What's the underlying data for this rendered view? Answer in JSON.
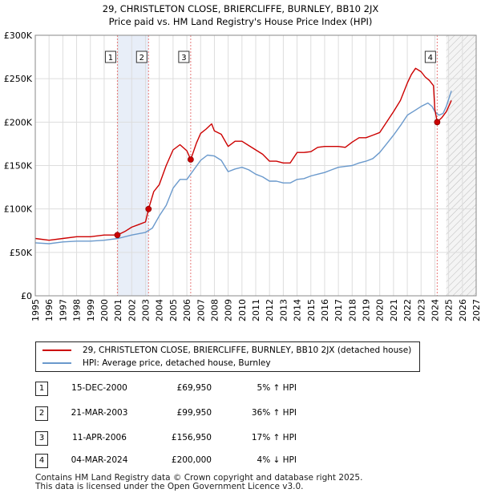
{
  "title": {
    "line1": "29, CHRISTLETON CLOSE, BRIERCLIFFE, BURNLEY, BB10 2JX",
    "line2": "Price paid vs. HM Land Registry's House Price Index (HPI)"
  },
  "legend": {
    "property": "29, CHRISTLETON CLOSE, BRIERCLIFFE, BURNLEY, BB10 2JX (detached house)",
    "hpi": "HPI: Average price, detached house, Burnley"
  },
  "sales": [
    {
      "num": "1",
      "date": "15-DEC-2000",
      "price": "£69,950",
      "hpi": "5% ↑ HPI"
    },
    {
      "num": "2",
      "date": "21-MAR-2003",
      "price": "£99,950",
      "hpi": "36% ↑ HPI"
    },
    {
      "num": "3",
      "date": "11-APR-2006",
      "price": "£156,950",
      "hpi": "17% ↑ HPI"
    },
    {
      "num": "4",
      "date": "04-MAR-2024",
      "price": "£200,000",
      "hpi": "4% ↓ HPI"
    }
  ],
  "footer": {
    "line1": "Contains HM Land Registry data © Crown copyright and database right 2025.",
    "line2": "This data is licensed under the Open Government Licence v3.0."
  },
  "colors": {
    "property": "#cc0000",
    "hpi": "#6a99cc",
    "marker_line": "#e87a7a",
    "shade": "#e8eef8",
    "grid": "#dddddd",
    "forecast_hatch": "#bbbbbb"
  },
  "chart_data": {
    "type": "line",
    "xlim": [
      1995,
      2027
    ],
    "ylim": [
      0,
      300000
    ],
    "x_ticks": [
      "1995",
      "1996",
      "1997",
      "1998",
      "1999",
      "2000",
      "2001",
      "2002",
      "2003",
      "2004",
      "2005",
      "2006",
      "2007",
      "2008",
      "2009",
      "2010",
      "2011",
      "2012",
      "2013",
      "2014",
      "2015",
      "2016",
      "2017",
      "2018",
      "2019",
      "2020",
      "2021",
      "2022",
      "2023",
      "2024",
      "2025",
      "2026",
      "2027"
    ],
    "y_ticks": [
      {
        "value": 0,
        "label": "£0"
      },
      {
        "value": 50000,
        "label": "£50K"
      },
      {
        "value": 100000,
        "label": "£100K"
      },
      {
        "value": 150000,
        "label": "£150K"
      },
      {
        "value": 200000,
        "label": "£200K"
      },
      {
        "value": 250000,
        "label": "£250K"
      },
      {
        "value": 300000,
        "label": "£300K"
      }
    ],
    "forecast_start": 2024.83,
    "sale_markers": [
      {
        "label": "1",
        "x": 2000.96,
        "y": 69950
      },
      {
        "label": "2",
        "x": 2003.22,
        "y": 99950
      },
      {
        "label": "3",
        "x": 2006.28,
        "y": 156950
      },
      {
        "label": "4",
        "x": 2024.17,
        "y": 200000
      }
    ],
    "series": [
      {
        "name": "29, CHRISTLETON CLOSE, BRIERCLIFFE, BURNLEY, BB10 2JX (detached house)",
        "x": [
          1995.0,
          1996.0,
          1997.0,
          1998.0,
          1999.0,
          2000.0,
          2000.96,
          2001.5,
          2002.0,
          2002.5,
          2003.0,
          2003.22,
          2003.6,
          2004.0,
          2004.5,
          2005.0,
          2005.5,
          2006.0,
          2006.28,
          2006.7,
          2007.0,
          2007.4,
          2007.8,
          2008.0,
          2008.5,
          2009.0,
          2009.5,
          2010.0,
          2010.5,
          2011.0,
          2011.5,
          2012.0,
          2012.5,
          2013.0,
          2013.5,
          2014.0,
          2014.5,
          2015.0,
          2015.5,
          2016.0,
          2016.5,
          2017.0,
          2017.5,
          2018.0,
          2018.5,
          2019.0,
          2019.5,
          2020.0,
          2020.5,
          2021.0,
          2021.5,
          2022.0,
          2022.3,
          2022.6,
          2023.0,
          2023.3,
          2023.6,
          2023.9,
          2024.0,
          2024.17,
          2024.5,
          2024.83,
          2025.2
        ],
        "y": [
          66000,
          64000,
          66000,
          68000,
          68000,
          70000,
          69950,
          74000,
          79000,
          82000,
          85000,
          99950,
          120000,
          128000,
          150000,
          168000,
          174000,
          167000,
          156950,
          176000,
          187000,
          192000,
          198000,
          190000,
          186000,
          172000,
          178000,
          178000,
          173000,
          168000,
          163000,
          155000,
          155000,
          153000,
          153000,
          165000,
          165000,
          166000,
          171000,
          172000,
          172000,
          172000,
          171000,
          177000,
          182000,
          182000,
          185000,
          188000,
          200000,
          212000,
          225000,
          245000,
          255000,
          262000,
          258000,
          252000,
          248000,
          242000,
          215000,
          200000,
          205000,
          212000,
          225000
        ]
      },
      {
        "name": "HPI: Average price, detached house, Burnley",
        "x": [
          1995.0,
          1996.0,
          1997.0,
          1998.0,
          1999.0,
          2000.0,
          2001.0,
          2002.0,
          2003.0,
          2003.5,
          2004.0,
          2004.5,
          2005.0,
          2005.5,
          2006.0,
          2006.5,
          2007.0,
          2007.5,
          2008.0,
          2008.5,
          2009.0,
          2009.5,
          2010.0,
          2010.5,
          2011.0,
          2011.5,
          2012.0,
          2012.5,
          2013.0,
          2013.5,
          2014.0,
          2014.5,
          2015.0,
          2015.5,
          2016.0,
          2016.5,
          2017.0,
          2017.5,
          2018.0,
          2018.5,
          2019.0,
          2019.5,
          2020.0,
          2020.5,
          2021.0,
          2021.5,
          2022.0,
          2022.5,
          2023.0,
          2023.5,
          2023.8,
          2024.0,
          2024.3,
          2024.6,
          2024.83,
          2025.2
        ],
        "y": [
          61000,
          60000,
          62000,
          63000,
          63000,
          64000,
          66000,
          70000,
          73000,
          78000,
          92000,
          104000,
          124000,
          134000,
          134000,
          145000,
          156000,
          162000,
          161000,
          156000,
          143000,
          146000,
          148000,
          145000,
          140000,
          137000,
          132000,
          132000,
          130000,
          130000,
          134000,
          135000,
          138000,
          140000,
          142000,
          145000,
          148000,
          149000,
          150000,
          153000,
          155000,
          158000,
          165000,
          175000,
          185000,
          196000,
          208000,
          213000,
          218000,
          222000,
          218000,
          212000,
          208000,
          210000,
          218000,
          236000
        ]
      }
    ]
  }
}
